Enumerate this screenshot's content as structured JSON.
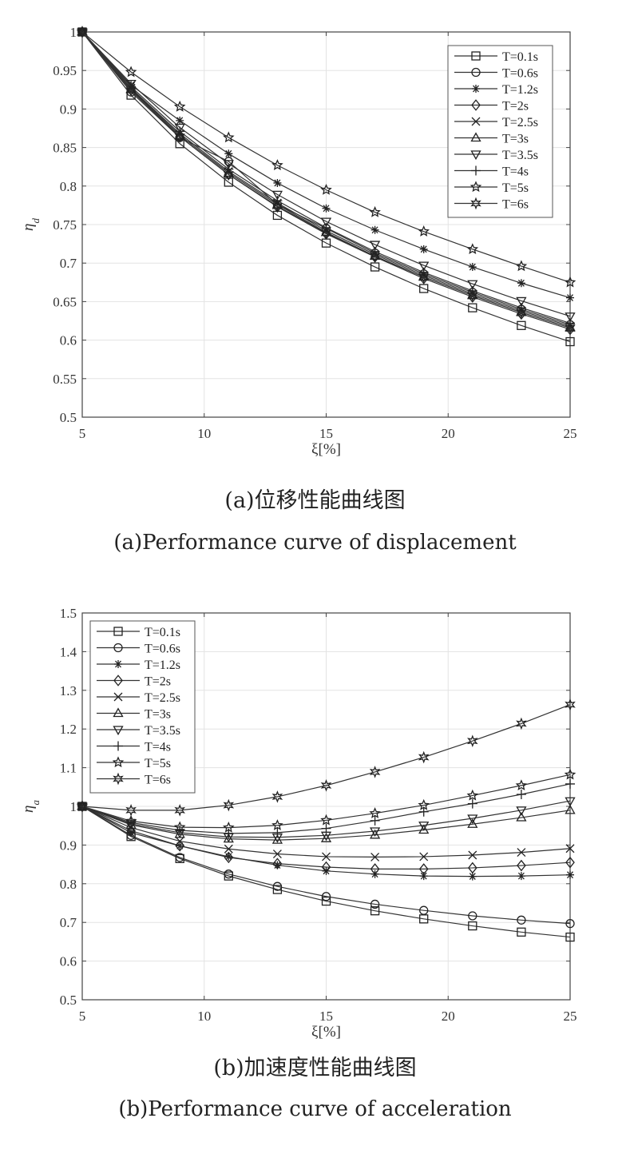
{
  "figure_a": {
    "caption_cn": "(a)位移性能曲线图",
    "caption_en": "(a)Performance curve of displacement"
  },
  "figure_b": {
    "caption_cn": "(b)加速度性能曲线图",
    "caption_en": "(b)Performance curve of acceleration"
  },
  "chart_data": [
    {
      "type": "line",
      "title": "",
      "xlabel": "ξ[%]",
      "ylabel": "η_d",
      "xlim": [
        5,
        25
      ],
      "ylim": [
        0.5,
        1
      ],
      "xticks": [
        5,
        10,
        15,
        20,
        25
      ],
      "yticks": [
        0.5,
        0.55,
        0.6,
        0.65,
        0.7,
        0.75,
        0.8,
        0.85,
        0.9,
        0.95,
        1
      ],
      "ytick_labels": [
        "0.5",
        "0.55",
        "0.6",
        "0.65",
        "0.7",
        "0.75",
        "0.8",
        "0.85",
        "0.9",
        "0.95",
        "1"
      ],
      "grid": true,
      "legend": "top-right",
      "x": [
        5,
        7,
        9,
        11,
        13,
        15,
        17,
        19,
        21,
        23,
        25
      ],
      "series": [
        {
          "name": "T=0.1s",
          "marker": "square",
          "values": [
            1,
            0.918,
            0.855,
            0.805,
            0.762,
            0.726,
            0.695,
            0.667,
            0.642,
            0.619,
            0.598
          ]
        },
        {
          "name": "T=0.6s",
          "marker": "circle",
          "values": [
            1,
            0.922,
            0.863,
            0.832,
            0.776,
            0.745,
            0.713,
            0.686,
            0.662,
            0.64,
            0.62
          ]
        },
        {
          "name": "T=1.2s",
          "marker": "asterisk",
          "values": [
            1,
            0.931,
            0.885,
            0.842,
            0.804,
            0.771,
            0.743,
            0.718,
            0.695,
            0.674,
            0.655
          ]
        },
        {
          "name": "T=2s",
          "marker": "diamond",
          "values": [
            1,
            0.925,
            0.864,
            0.815,
            0.773,
            0.738,
            0.708,
            0.68,
            0.656,
            0.634,
            0.614
          ]
        },
        {
          "name": "T=2.5s",
          "marker": "x",
          "values": [
            1,
            0.927,
            0.868,
            0.819,
            0.778,
            0.742,
            0.711,
            0.684,
            0.66,
            0.638,
            0.618
          ]
        },
        {
          "name": "T=3s",
          "marker": "triangle-up",
          "values": [
            1,
            0.926,
            0.866,
            0.817,
            0.776,
            0.74,
            0.709,
            0.682,
            0.658,
            0.636,
            0.616
          ]
        },
        {
          "name": "T=3.5s",
          "marker": "triangle-down",
          "values": [
            1,
            0.933,
            0.876,
            0.829,
            0.789,
            0.754,
            0.724,
            0.697,
            0.673,
            0.651,
            0.631
          ]
        },
        {
          "name": "T=4s",
          "marker": "plus",
          "values": [
            1,
            0.929,
            0.871,
            0.822,
            0.781,
            0.746,
            0.715,
            0.688,
            0.664,
            0.642,
            0.622
          ]
        },
        {
          "name": "T=5s",
          "marker": "star",
          "values": [
            1,
            0.948,
            0.903,
            0.863,
            0.827,
            0.795,
            0.766,
            0.741,
            0.718,
            0.696,
            0.675
          ]
        },
        {
          "name": "T=6s",
          "marker": "hexagram",
          "values": [
            1,
            0.924,
            0.864,
            0.815,
            0.774,
            0.739,
            0.709,
            0.682,
            0.658,
            0.636,
            0.616
          ]
        }
      ]
    },
    {
      "type": "line",
      "title": "",
      "xlabel": "ξ[%]",
      "ylabel": "η_a",
      "xlim": [
        5,
        25
      ],
      "ylim": [
        0.5,
        1.5
      ],
      "xticks": [
        5,
        10,
        15,
        20,
        25
      ],
      "yticks": [
        0.5,
        0.6,
        0.7,
        0.8,
        0.9,
        1,
        1.1,
        1.2,
        1.3,
        1.4,
        1.5
      ],
      "ytick_labels": [
        "0.5",
        "0.6",
        "0.7",
        "0.8",
        "0.9",
        "1",
        "1.1",
        "1.2",
        "1.3",
        "1.4",
        "1.5"
      ],
      "grid": true,
      "legend": "top-left",
      "x": [
        5,
        7,
        9,
        11,
        13,
        15,
        17,
        19,
        21,
        23,
        25
      ],
      "series": [
        {
          "name": "T=0.1s",
          "marker": "square",
          "values": [
            1,
            0.922,
            0.865,
            0.82,
            0.785,
            0.755,
            0.73,
            0.709,
            0.691,
            0.675,
            0.662
          ]
        },
        {
          "name": "T=0.6s",
          "marker": "circle",
          "values": [
            1,
            0.925,
            0.868,
            0.825,
            0.793,
            0.767,
            0.747,
            0.731,
            0.717,
            0.706,
            0.697
          ]
        },
        {
          "name": "T=1.2s",
          "marker": "asterisk",
          "values": [
            1,
            0.932,
            0.898,
            0.87,
            0.848,
            0.833,
            0.825,
            0.82,
            0.819,
            0.82,
            0.823
          ]
        },
        {
          "name": "T=2s",
          "marker": "diamond",
          "values": [
            1,
            0.937,
            0.898,
            0.868,
            0.852,
            0.843,
            0.838,
            0.838,
            0.841,
            0.847,
            0.855
          ]
        },
        {
          "name": "T=2.5s",
          "marker": "x",
          "values": [
            1,
            0.945,
            0.91,
            0.89,
            0.877,
            0.87,
            0.869,
            0.87,
            0.874,
            0.881,
            0.891
          ]
        },
        {
          "name": "T=3s",
          "marker": "triangle-up",
          "values": [
            1,
            0.952,
            0.928,
            0.916,
            0.913,
            0.917,
            0.926,
            0.939,
            0.954,
            0.971,
            0.99
          ]
        },
        {
          "name": "T=3.5s",
          "marker": "triangle-down",
          "values": [
            1,
            0.955,
            0.932,
            0.921,
            0.92,
            0.925,
            0.936,
            0.951,
            0.969,
            0.99,
            1.014
          ]
        },
        {
          "name": "T=4s",
          "marker": "plus",
          "values": [
            1,
            0.958,
            0.938,
            0.93,
            0.932,
            0.943,
            0.963,
            0.986,
            1.007,
            1.031,
            1.058
          ]
        },
        {
          "name": "T=5s",
          "marker": "star",
          "values": [
            1,
            0.962,
            0.946,
            0.945,
            0.951,
            0.964,
            0.982,
            1.003,
            1.028,
            1.054,
            1.082
          ]
        },
        {
          "name": "T=6s",
          "marker": "hexagram",
          "values": [
            1,
            0.99,
            0.99,
            1.003,
            1.025,
            1.054,
            1.089,
            1.127,
            1.169,
            1.214,
            1.263
          ]
        }
      ]
    }
  ]
}
